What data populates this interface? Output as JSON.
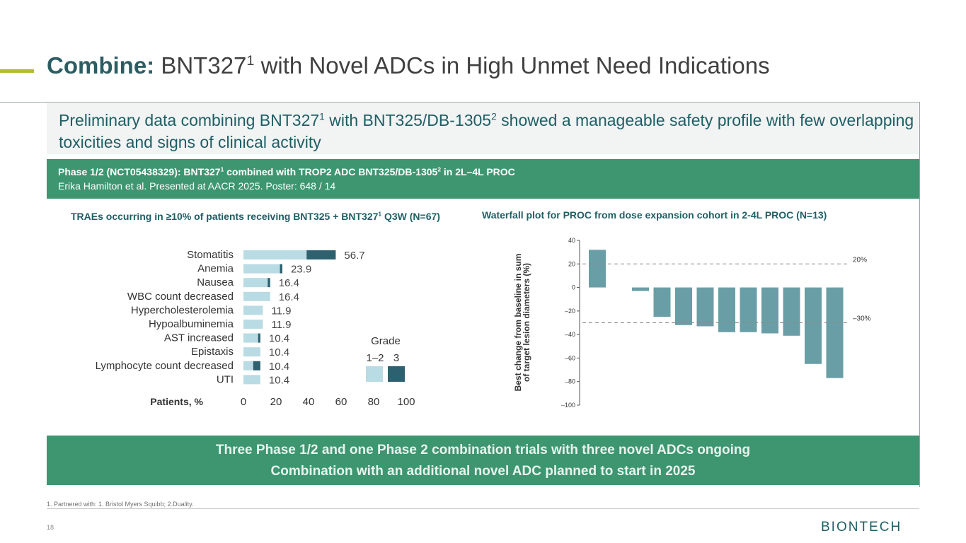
{
  "slide": {
    "title_bold": "Combine:",
    "title_rest": " BNT327",
    "title_sup": "1",
    "title_end": " with Novel ADCs in High Unmet Need Indications",
    "headline": {
      "t1": "Preliminary data combining BNT327",
      "s1": "1",
      "t2": " with BNT325/DB-1305",
      "s2": "2",
      "t3": " showed a manageable safety profile with few overlapping toxicities and signs of clinical activity"
    },
    "study": {
      "t1": "Phase 1/2 (NCT05438329): BNT327",
      "s1": "1",
      "t2": " combined with TROP2 ADC BNT325/DB-1305",
      "s2": "2",
      "t3": " in 2L–4L PROC",
      "citation": "Erika Hamilton et al. Presented at AACR 2025. Poster: 648 / 14"
    },
    "left_panel_title": {
      "t1": "TRAEs occurring in  ≥10% of patients receiving BNT325 + BNT327",
      "s1": "1",
      "t2": " Q3W (N=67)"
    },
    "right_panel_title": "Waterfall plot for PROC from dose expansion cohort in 2-4L PROC (N=13)",
    "bottom_lines": [
      "Three Phase 1/2 and one Phase 2 combination trials with three novel ADCs ongoing",
      "Combination with an additional novel ADC planned to start in 2025"
    ],
    "footnote": "1. Partnered with: 1. Bristol Myers Squibb; 2.Duality.",
    "page_number": "18",
    "logo_text": "BIONTECH"
  },
  "colors": {
    "grade12": "#b9dbe3",
    "grade3": "#2d6170",
    "waterfall_bar": "#6a9ea6",
    "band_green": "#3d9670",
    "title_teal": "#1e5f66"
  },
  "chart_data": [
    {
      "type": "bar",
      "orientation": "horizontal",
      "stacked": true,
      "categories": [
        "Stomatitis",
        "Anemia",
        "Nausea",
        "WBC count decreased",
        "Hypercholesterolemia",
        "Hypoalbuminemia",
        "AST increased",
        "Epistaxis",
        "Lymphocyte count decreased",
        "UTI"
      ],
      "series": [
        {
          "name": "1–2",
          "values": [
            38.8,
            22.4,
            14.9,
            16.4,
            11.9,
            11.9,
            9.0,
            10.4,
            6.0,
            10.4
          ]
        },
        {
          "name": "3",
          "values": [
            17.9,
            1.5,
            1.5,
            0,
            0,
            0,
            1.4,
            0,
            4.4,
            0
          ]
        }
      ],
      "data_labels": [
        "56.7",
        "23.9",
        "16.4",
        "16.4",
        "11.9",
        "11.9",
        "10.4",
        "10.4",
        "10.4",
        "10.4"
      ],
      "xlabel": "Patients, %",
      "xlim": [
        0,
        100
      ],
      "xticks": [
        "0",
        "20",
        "40",
        "60",
        "80",
        "100"
      ],
      "legend_title": "Grade",
      "legend_position": "right"
    },
    {
      "type": "bar",
      "subtype": "waterfall",
      "values": [
        32,
        null,
        -3,
        -25,
        -32,
        -33,
        -38,
        -38,
        -39,
        -41,
        -65,
        -77
      ],
      "ylabel": "Best change from baseline in sum of target lesion diameters (%)",
      "ylim": [
        -100,
        40
      ],
      "yticks": [
        "40",
        "20",
        "0",
        "–20",
        "–40",
        "–60",
        "–80",
        "–100"
      ],
      "reference_lines": [
        {
          "value": 20,
          "label": "20%"
        },
        {
          "value": -30,
          "label": "–30%"
        }
      ]
    }
  ]
}
